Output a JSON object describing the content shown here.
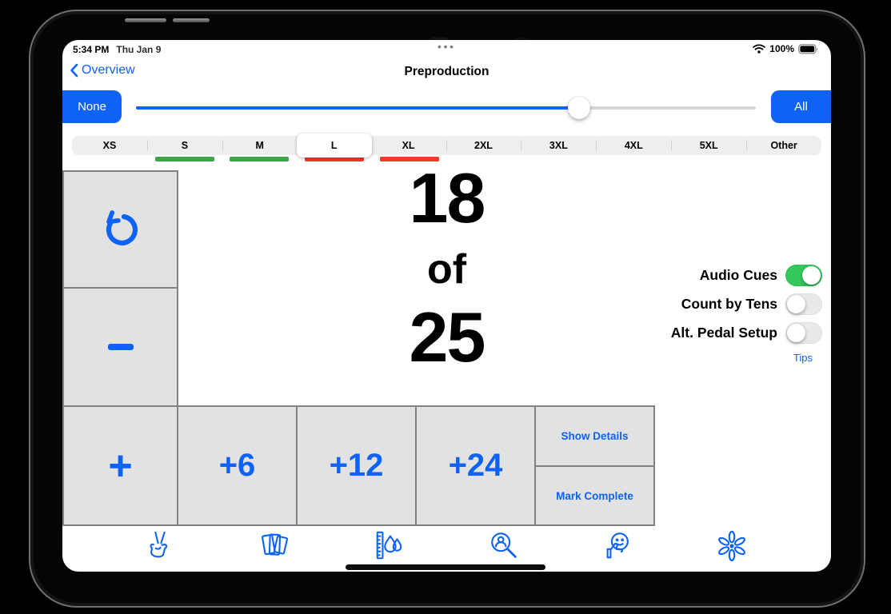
{
  "status_bar": {
    "time": "5:34 PM",
    "date": "Thu Jan 9",
    "battery_percent": "100%",
    "multitasking_indicator": "•••",
    "icons": [
      "wifi-icon",
      "battery-icon"
    ]
  },
  "nav": {
    "back_label": "Overview",
    "title": "Preproduction"
  },
  "range_filter": {
    "none_label": "None",
    "all_label": "All",
    "slider_percent": 71.5
  },
  "sizes": {
    "selected": "L",
    "options": [
      {
        "label": "XS",
        "selected": false,
        "underline_color": null
      },
      {
        "label": "S",
        "selected": false,
        "underline_color": "#3fa54b"
      },
      {
        "label": "M",
        "selected": false,
        "underline_color": "#3fa54b"
      },
      {
        "label": "L",
        "selected": true,
        "underline_color": "#ee3a2f"
      },
      {
        "label": "XL",
        "selected": false,
        "underline_color": "#ee3a2f"
      },
      {
        "label": "2XL",
        "selected": false,
        "underline_color": null
      },
      {
        "label": "3XL",
        "selected": false,
        "underline_color": null
      },
      {
        "label": "4XL",
        "selected": false,
        "underline_color": null
      },
      {
        "label": "5XL",
        "selected": false,
        "underline_color": null
      },
      {
        "label": "Other",
        "selected": false,
        "underline_color": null
      }
    ]
  },
  "counter": {
    "current": "18",
    "separator": "of",
    "total": "25"
  },
  "toggles": [
    {
      "label": "Audio Cues",
      "on": true
    },
    {
      "label": "Count by Tens",
      "on": false
    },
    {
      "label": "Alt. Pedal Setup",
      "on": false
    }
  ],
  "tips_label": "Tips",
  "actions": {
    "undo_icon": "undo-counterclockwise-icon",
    "minus_icon": "minus-icon",
    "plus_label": "+",
    "plus6_label": "+6",
    "plus12_label": "+12",
    "plus24_label": "+24",
    "show_details_label": "Show Details",
    "mark_complete_label": "Mark Complete"
  },
  "tab_bar": {
    "items": [
      {
        "icon": "hand-tally-icon"
      },
      {
        "icon": "fabric-swatches-icon"
      },
      {
        "icon": "ruler-dye-icon"
      },
      {
        "icon": "inspect-magnifier-icon"
      },
      {
        "icon": "approve-thumbs-up-icon"
      },
      {
        "icon": "flower-finishing-icon"
      }
    ]
  },
  "colors": {
    "accent_blue": "#0e62f5",
    "toggle_green": "#34c759",
    "underline_green": "#3fa54b",
    "underline_red": "#ee3a2f",
    "cell_background": "#e2e2e2",
    "cell_border": "#818181"
  }
}
